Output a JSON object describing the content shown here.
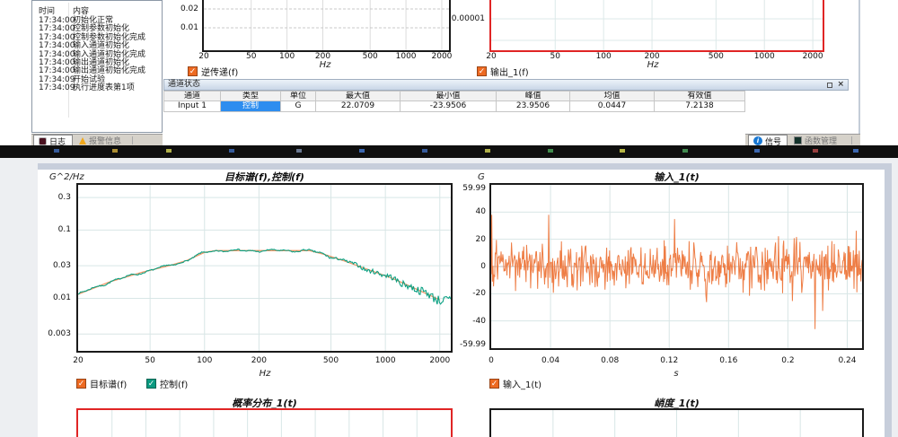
{
  "top": {
    "log_panel": {
      "columns": [
        "时间",
        "内容"
      ],
      "rows": [
        [
          "17:34:00",
          "初始化正常"
        ],
        [
          "17:34:00",
          "控制参数初始化"
        ],
        [
          "17:34:00",
          "控制参数初始化完成"
        ],
        [
          "17:34:00",
          "输入通道初始化"
        ],
        [
          "17:34:00",
          "输入通道初始化完成"
        ],
        [
          "17:34:00",
          "输出通道初始化"
        ],
        [
          "17:34:00",
          "输出通道初始化完成"
        ],
        [
          "17:34:09",
          "开始试验"
        ],
        [
          "17:34:09",
          "执行进度表第1项"
        ]
      ],
      "tabs": [
        {
          "label": "日志",
          "icon": "log-icon",
          "active": true
        },
        {
          "label": "报警信息",
          "icon": "warning-icon",
          "active": false
        }
      ]
    },
    "right_tabs": [
      {
        "label": "信号",
        "icon": "info-icon",
        "active": true
      },
      {
        "label": "函数管理",
        "icon": "function-icon",
        "active": false
      }
    ],
    "channel_table": {
      "title": "通道状态",
      "columns": [
        "通道",
        "类型",
        "单位",
        "最大值",
        "最小值",
        "峰值",
        "均值",
        "有效值"
      ],
      "rows": [
        [
          "Input 1",
          "控制",
          "G",
          "22.0709",
          "-23.9506",
          "23.9506",
          "0.0447",
          "7.2138"
        ]
      ]
    }
  },
  "chart_data": [
    {
      "id": "inverse-transfer",
      "type": "line",
      "title": "",
      "xlabel": "Hz",
      "x_scale": "log",
      "xlim": [
        20,
        2300
      ],
      "x_ticks": [
        20,
        50,
        100,
        200,
        500,
        1000,
        2000
      ],
      "y_ticks": [
        0.02,
        0.01
      ],
      "frame_color": "#1a1a1a",
      "legend": [
        {
          "label": "逆传递(f)",
          "color": "#ed6a22"
        }
      ],
      "series": []
    },
    {
      "id": "output-spectrum",
      "type": "line",
      "title": "",
      "xlabel": "Hz",
      "x_scale": "log",
      "xlim": [
        20,
        2300
      ],
      "x_ticks": [
        20,
        50,
        100,
        200,
        500,
        1000,
        2000
      ],
      "y_ticks": [
        1e-05
      ],
      "frame_color": "#e02525",
      "legend": [
        {
          "label": "输出_1(f)",
          "color": "#ed6a22"
        }
      ],
      "series": []
    },
    {
      "id": "psd-control",
      "type": "line",
      "title": "目标谱(f),控制(f)",
      "ylabel": "G^2/Hz",
      "xlabel": "Hz",
      "x_scale": "log",
      "y_scale": "log",
      "xlim": [
        20,
        2300
      ],
      "ylim": [
        0.0017,
        0.46
      ],
      "x_ticks": [
        20,
        50,
        100,
        200,
        500,
        1000,
        2000
      ],
      "y_ticks": [
        0.3,
        0.1,
        0.03,
        0.01,
        0.003
      ],
      "frame_color": "#1a1a1a",
      "grid": true,
      "series": [
        {
          "name": "目标谱(f)",
          "color": "#f2996a",
          "points": [
            [
              20,
              0.0115
            ],
            [
              30,
              0.0175
            ],
            [
              45,
              0.024
            ],
            [
              65,
              0.0305
            ],
            [
              80,
              0.036
            ],
            [
              100,
              0.047
            ],
            [
              115,
              0.05
            ],
            [
              380,
              0.05
            ],
            [
              460,
              0.044
            ],
            [
              600,
              0.035
            ],
            [
              800,
              0.0265
            ],
            [
              1100,
              0.0195
            ],
            [
              1500,
              0.0135
            ],
            [
              2000,
              0.0095
            ]
          ]
        },
        {
          "name": "控制(f)",
          "color": "#0ba183",
          "derived": "target_with_noise",
          "noise_seed": 7
        }
      ],
      "legend": [
        {
          "label": "目标谱(f)",
          "color": "#ed6a22"
        },
        {
          "label": "控制(f)",
          "color": "#0a9a80"
        }
      ]
    },
    {
      "id": "input-time",
      "type": "line",
      "title": "输入_1(t)",
      "ylabel": "G",
      "xlabel": "s",
      "xlim": [
        0,
        0.25
      ],
      "ylim": [
        -59.99,
        59.99
      ],
      "x_ticks": [
        0,
        0.04,
        0.08,
        0.12,
        0.16,
        0.2,
        0.24
      ],
      "y_ticks": [
        59.99,
        40,
        20,
        0,
        -20,
        -40,
        -59.99
      ],
      "frame_color": "#1a1a1a",
      "grid": true,
      "series": [
        {
          "name": "输入_1(t)",
          "color": "#ee7d45",
          "synth": {
            "n": 640,
            "std": 8.3,
            "seed": 13,
            "spike_prob": 0.012,
            "clip": [
              -46,
              38
            ]
          }
        }
      ],
      "legend": [
        {
          "label": "输入_1(t)",
          "color": "#ed6a22"
        }
      ]
    },
    {
      "id": "probability-distribution",
      "type": "line",
      "title": "概率分布_1(t)",
      "frame_color": "#e02525",
      "grid_divisions": 11,
      "series": []
    },
    {
      "id": "kurtosis",
      "type": "line",
      "title": "峭度_1(t)",
      "frame_color": "#1a1a1a",
      "grid_divisions": 6,
      "series": []
    }
  ]
}
